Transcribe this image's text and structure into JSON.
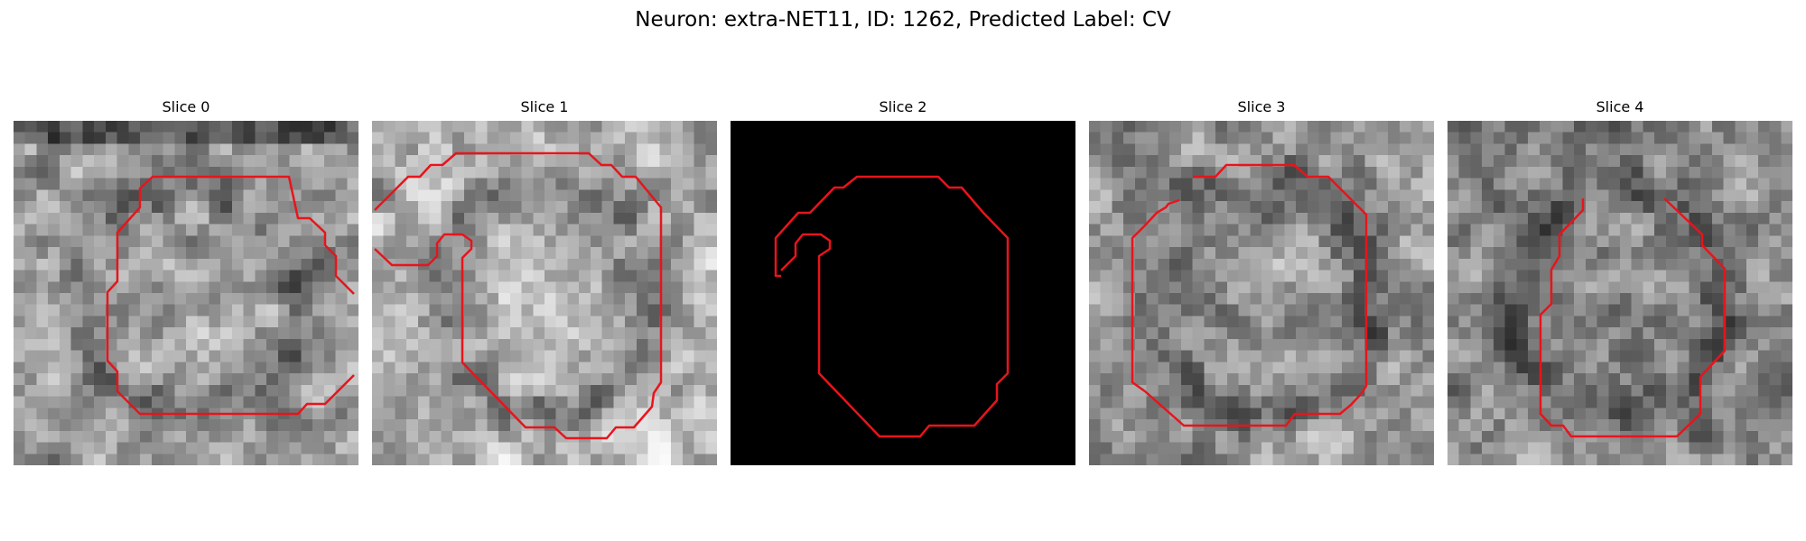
{
  "figure": {
    "title": "Neuron: extra-NET11, ID: 1262, Predicted Label: CV"
  },
  "panels": [
    {
      "title": "Slice 0",
      "image": "grayscale-microscopy-slice",
      "seed": 11,
      "contour_color": "#e8141c",
      "mean_brightness": 0.62
    },
    {
      "title": "Slice 1",
      "image": "grayscale-microscopy-slice",
      "seed": 23,
      "contour_color": "#e8141c",
      "mean_brightness": 0.7
    },
    {
      "title": "Slice 2",
      "image": "black-blank-slice",
      "seed": 0,
      "contour_color": "#e8141c",
      "mean_brightness": 0.0
    },
    {
      "title": "Slice 3",
      "image": "grayscale-microscopy-slice",
      "seed": 37,
      "contour_color": "#e8141c",
      "mean_brightness": 0.58
    },
    {
      "title": "Slice 4",
      "image": "grayscale-microscopy-slice",
      "seed": 53,
      "contour_color": "#e8141c",
      "mean_brightness": 0.55
    }
  ]
}
